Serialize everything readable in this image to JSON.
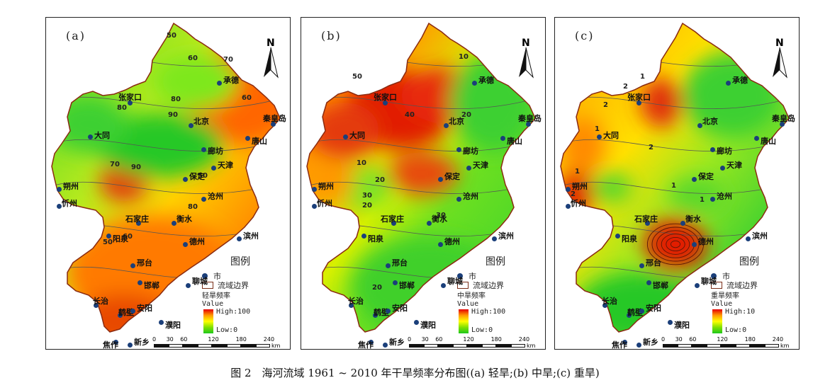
{
  "panels": [
    {
      "label": "(a)",
      "legend_subtitle": "轻旱频率",
      "high": "High:100",
      "low": "Low:0",
      "contours": [
        "50",
        "60",
        "80",
        "80",
        "90",
        "70",
        "60",
        "90",
        "50",
        "50",
        "70",
        "80",
        "60"
      ]
    },
    {
      "label": "(b)",
      "legend_subtitle": "中旱频率",
      "high": "High:100",
      "low": "Low:0",
      "contours": [
        "50",
        "40",
        "30",
        "30",
        "20",
        "10",
        "10",
        "20",
        "20",
        "20"
      ]
    },
    {
      "label": "(c)",
      "legend_subtitle": "重旱频率",
      "high": "High:10",
      "low": "Low:0",
      "contours": [
        "1",
        "2",
        "1",
        "2",
        "2",
        "1",
        "1",
        "2",
        "1"
      ]
    }
  ],
  "legend": {
    "title": "图例",
    "city": "市",
    "boundary": "流域边界",
    "value": "Value"
  },
  "north": "N",
  "scale": {
    "ticks": [
      "0",
      "30",
      "60",
      "120",
      "180",
      "240"
    ],
    "unit": "km"
  },
  "cities": [
    "承德",
    "张家口",
    "秦皇岛",
    "大同",
    "北京",
    "唐山",
    "廊坊",
    "天津",
    "朔州",
    "保定",
    "沧州",
    "忻州",
    "石家庄",
    "衡水",
    "阳泉",
    "德州",
    "滨州",
    "邢台",
    "邯郸",
    "聊城",
    "长治",
    "鹤壁",
    "安阳",
    "濮阳",
    "焦作",
    "新乡"
  ],
  "caption": "图 2　海河流域 1961 ~ 2010 年干旱频率分布图((a) 轻旱;(b) 中旱;(c) 重旱)",
  "colors": {
    "high": "#e60000",
    "mid": "#ffff00",
    "low": "#1ec81e",
    "city_dot": "#1b3f7a"
  }
}
